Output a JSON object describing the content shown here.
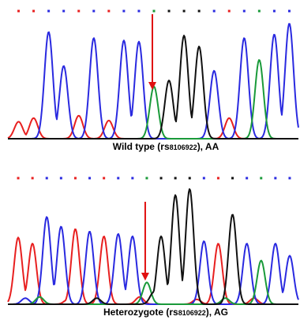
{
  "panels": [
    {
      "id": "top",
      "caption_prefix": "Wild type (rs",
      "caption_rsid": "8106922",
      "caption_suffix": "), AA",
      "peaks": [
        {
          "color": "red",
          "h": 0.14
        },
        {
          "color": "red",
          "h": 0.17
        },
        {
          "color": "blue",
          "h": 0.88
        },
        {
          "color": "blue",
          "h": 0.6
        },
        {
          "color": "red",
          "h": 0.19
        },
        {
          "color": "blue",
          "h": 0.83
        },
        {
          "color": "red",
          "h": 0.15
        },
        {
          "color": "blue",
          "h": 0.81
        },
        {
          "color": "blue",
          "h": 0.8
        },
        {
          "color": "green",
          "h": 0.43
        },
        {
          "color": "black",
          "h": 0.48
        },
        {
          "color": "black",
          "h": 0.85
        },
        {
          "color": "black",
          "h": 0.76
        },
        {
          "color": "blue",
          "h": 0.56
        },
        {
          "color": "red",
          "h": 0.17
        },
        {
          "color": "blue",
          "h": 0.83
        },
        {
          "color": "green",
          "h": 0.65
        },
        {
          "color": "blue",
          "h": 0.86
        },
        {
          "color": "blue",
          "h": 0.95
        }
      ],
      "marker_index": 9
    },
    {
      "id": "bottom",
      "caption_prefix": "Heterozygote (rs",
      "caption_rsid": "8106922",
      "caption_suffix": "), AG",
      "peaks": [
        {
          "color": "red",
          "h": 0.55
        },
        {
          "color": "red",
          "h": 0.5
        },
        {
          "color": "blue",
          "h": 0.72
        },
        {
          "color": "blue",
          "h": 0.64
        },
        {
          "color": "red",
          "h": 0.62
        },
        {
          "color": "blue",
          "h": 0.6
        },
        {
          "color": "red",
          "h": 0.56
        },
        {
          "color": "blue",
          "h": 0.58
        },
        {
          "color": "blue",
          "h": 0.56
        },
        {
          "color": "green",
          "h": 0.18
        },
        {
          "color": "black",
          "h": 0.56
        },
        {
          "color": "black",
          "h": 0.9
        },
        {
          "color": "black",
          "h": 0.95
        },
        {
          "color": "blue",
          "h": 0.52
        },
        {
          "color": "red",
          "h": 0.5
        },
        {
          "color": "black",
          "h": 0.74
        },
        {
          "color": "blue",
          "h": 0.5
        },
        {
          "color": "green",
          "h": 0.36
        },
        {
          "color": "blue",
          "h": 0.5
        },
        {
          "color": "blue",
          "h": 0.4
        }
      ],
      "minor_peaks": [
        {
          "after": 0,
          "color": "blue",
          "h": 0.05
        },
        {
          "after": 1,
          "color": "green",
          "h": 0.06
        },
        {
          "after": 3,
          "color": "red",
          "h": 0.04
        },
        {
          "after": 5,
          "color": "black",
          "h": 0.05
        },
        {
          "after": 8,
          "color": "red",
          "h": 0.06
        },
        {
          "after": 9,
          "color": "black",
          "h": 0.1
        },
        {
          "after": 12,
          "color": "red",
          "h": 0.04
        },
        {
          "after": 14,
          "color": "green",
          "h": 0.05
        },
        {
          "after": 16,
          "color": "red",
          "h": 0.05
        }
      ],
      "marker_index": 9
    }
  ],
  "colors": {
    "red": "#e82020",
    "blue": "#2a2ae0",
    "green": "#1a9a3a",
    "black": "#111111",
    "arrow": "#e01010"
  }
}
